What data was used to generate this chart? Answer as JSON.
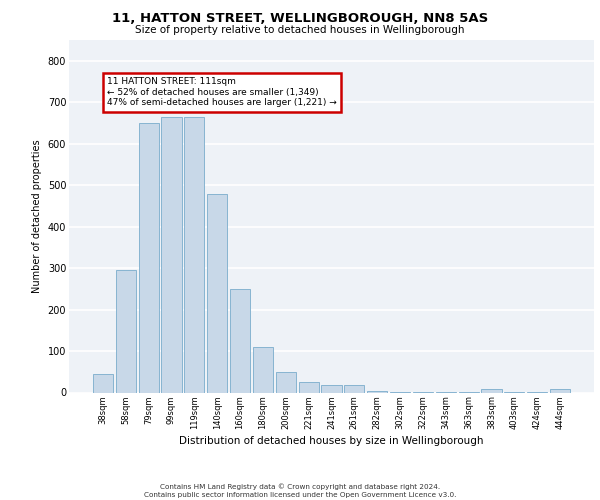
{
  "title": "11, HATTON STREET, WELLINGBOROUGH, NN8 5AS",
  "subtitle": "Size of property relative to detached houses in Wellingborough",
  "xlabel": "Distribution of detached houses by size in Wellingborough",
  "ylabel": "Number of detached properties",
  "categories": [
    "38sqm",
    "58sqm",
    "79sqm",
    "99sqm",
    "119sqm",
    "140sqm",
    "160sqm",
    "180sqm",
    "200sqm",
    "221sqm",
    "241sqm",
    "261sqm",
    "282sqm",
    "302sqm",
    "322sqm",
    "343sqm",
    "363sqm",
    "383sqm",
    "403sqm",
    "424sqm",
    "444sqm"
  ],
  "values": [
    45,
    295,
    650,
    665,
    665,
    478,
    250,
    110,
    50,
    25,
    18,
    18,
    3,
    1,
    1,
    1,
    1,
    8,
    1,
    1,
    8
  ],
  "bar_color": "#c8d8e8",
  "bar_edge_color": "#7aaccc",
  "annotation_text": "11 HATTON STREET: 111sqm\n← 52% of detached houses are smaller (1,349)\n47% of semi-detached houses are larger (1,221) →",
  "annotation_box_color": "#ffffff",
  "annotation_box_edge": "#cc0000",
  "property_bar_index": 3,
  "background_color": "#eef2f7",
  "grid_color": "#ffffff",
  "ylim": [
    0,
    850
  ],
  "yticks": [
    0,
    100,
    200,
    300,
    400,
    500,
    600,
    700,
    800
  ],
  "footer_line1": "Contains HM Land Registry data © Crown copyright and database right 2024.",
  "footer_line2": "Contains public sector information licensed under the Open Government Licence v3.0."
}
